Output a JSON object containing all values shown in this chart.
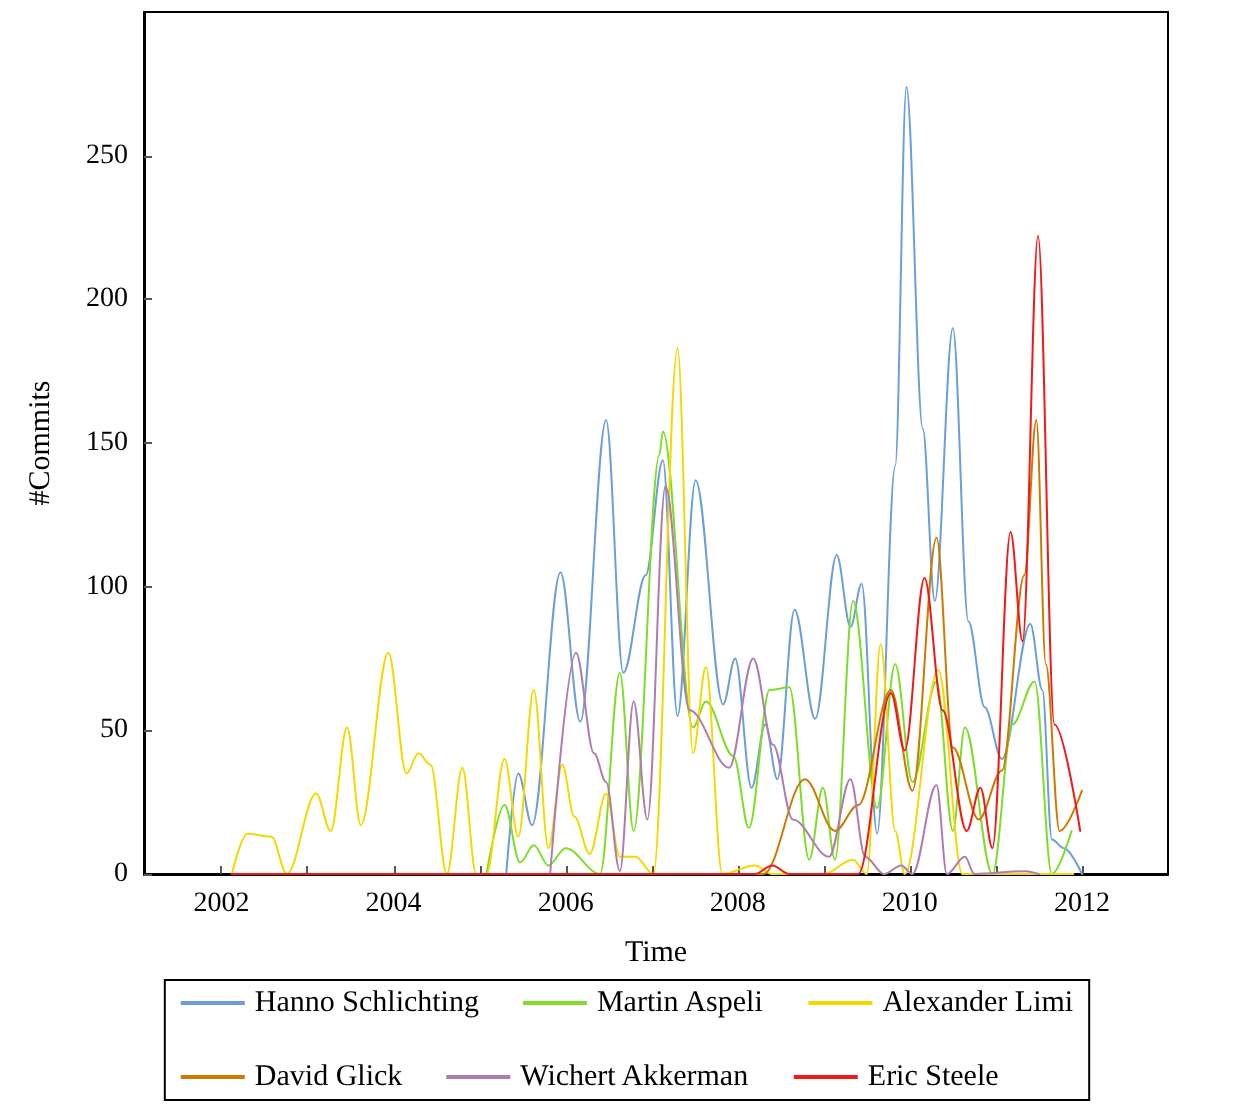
{
  "chart_data": {
    "type": "line",
    "xlabel": "Time",
    "ylabel": "#Commits",
    "xlim": [
      2001.1,
      2013
    ],
    "ylim": [
      0,
      300
    ],
    "xticks": [
      2002,
      {
        "value": 2003,
        "label": null
      },
      2004,
      {
        "value": 2005,
        "label": null
      },
      2006,
      {
        "value": 2007,
        "label": null
      },
      2008,
      {
        "value": 2009,
        "label": null
      },
      2010,
      {
        "value": 2011,
        "label": null
      },
      2012
    ],
    "yticks": [
      0,
      50,
      100,
      150,
      200,
      250
    ],
    "grid": false,
    "legend": "bottom",
    "marker": "none",
    "line_style": "solid",
    "series": [
      {
        "name": "Hanno Schlichting",
        "color": "#6a9fd8",
        "x": [
          2005.31,
          2005.45,
          2005.61,
          2005.94,
          2006.17,
          2006.47,
          2006.67,
          2006.93,
          2007.13,
          2007.3,
          2007.51,
          2007.83,
          2007.97,
          2008.16,
          2008.32,
          2008.46,
          2008.66,
          2008.9,
          2009.15,
          2009.31,
          2009.44,
          2009.62,
          2009.83,
          2009.96,
          2010.15,
          2010.29,
          2010.5,
          2010.68,
          2010.87,
          2011.07,
          2011.4,
          2011.54,
          2011.65,
          2011.79,
          2012.0
        ],
        "values": [
          0,
          35,
          17,
          105,
          53,
          158,
          70,
          104,
          144,
          55,
          137,
          59,
          75,
          30,
          52,
          33,
          92,
          54,
          111,
          86,
          101,
          14,
          142,
          274,
          155,
          95,
          190,
          88,
          58,
          40,
          87,
          64,
          12,
          9,
          0
        ]
      },
      {
        "name": "Martin Aspeli",
        "color": "#7fdd2a",
        "x": [
          2005.08,
          2005.29,
          2005.47,
          2005.63,
          2005.8,
          2006.0,
          2006.4,
          2006.63,
          2006.79,
          2007.09,
          2007.13,
          2007.48,
          2007.63,
          2007.95,
          2008.13,
          2008.37,
          2008.6,
          2008.83,
          2008.99,
          2009.13,
          2009.34,
          2009.62,
          2009.83,
          2010.03,
          2010.31,
          2010.5,
          2010.64,
          2010.96,
          2011.19,
          2011.45,
          2011.65,
          2011.88
        ],
        "values": [
          0,
          24,
          4,
          10,
          3,
          9,
          0,
          70,
          15,
          146,
          154,
          51,
          60,
          41,
          16,
          64,
          65,
          5,
          30,
          5,
          95,
          23,
          73,
          32,
          67,
          15,
          51,
          0,
          52,
          67,
          0,
          15
        ]
      },
      {
        "name": "Alexander Limi",
        "color": "#f5d800",
        "x": [
          2002.12,
          2002.3,
          2002.58,
          2002.76,
          2003.1,
          2003.27,
          2003.46,
          2003.62,
          2003.94,
          2004.15,
          2004.29,
          2004.43,
          2004.62,
          2004.8,
          2004.96,
          2005.08,
          2005.29,
          2005.45,
          2005.63,
          2005.8,
          2005.96,
          2006.1,
          2006.28,
          2006.47,
          2006.63,
          2006.81,
          2007.02,
          2007.3,
          2007.48,
          2007.63,
          2007.82,
          2008.2,
          2008.4,
          2009.0,
          2009.34,
          2009.5,
          2009.66,
          2009.83,
          2009.94,
          2010.33,
          2010.61,
          2011.9
        ],
        "values": [
          0,
          14,
          13,
          0,
          28,
          15,
          51,
          17,
          77,
          35,
          42,
          38,
          0,
          37,
          0,
          0,
          40,
          13,
          64,
          9,
          38,
          20,
          7,
          28,
          6,
          6,
          0,
          183,
          42,
          72,
          0,
          3,
          0,
          0,
          5,
          0,
          80,
          15,
          0,
          71,
          0,
          0
        ]
      },
      {
        "name": "David Glick",
        "color": "#cc7a00",
        "x": [
          2002.12,
          2008.3,
          2008.78,
          2009.13,
          2009.4,
          2009.78,
          2010.03,
          2010.31,
          2010.5,
          2010.8,
          2011.07,
          2011.33,
          2011.47,
          2011.58,
          2011.74,
          2012.0
        ],
        "values": [
          0,
          0,
          33,
          15,
          24,
          64,
          29,
          117,
          44,
          19,
          36,
          104,
          158,
          73,
          15,
          29
        ]
      },
      {
        "name": "Wichert Akkerman",
        "color": "#b07cb0",
        "x": [
          2005.82,
          2006.12,
          2006.33,
          2006.47,
          2006.63,
          2006.79,
          2006.95,
          2007.16,
          2007.44,
          2007.9,
          2008.18,
          2008.41,
          2008.64,
          2009.06,
          2009.31,
          2009.48,
          2009.7,
          2009.9,
          2010.03,
          2010.31,
          2010.43,
          2010.64,
          2010.75,
          2011.34,
          2011.5
        ],
        "values": [
          0,
          77,
          42,
          32,
          1,
          60,
          19,
          135,
          57,
          37,
          75,
          45,
          19,
          6,
          33,
          6,
          0,
          3,
          0,
          31,
          0,
          6,
          0,
          1,
          0
        ]
      },
      {
        "name": "Eric Steele",
        "color": "#f01818",
        "x": [
          2002.12,
          2008.2,
          2008.4,
          2008.6,
          2009.4,
          2009.78,
          2009.94,
          2010.17,
          2010.38,
          2010.66,
          2010.82,
          2010.96,
          2011.17,
          2011.31,
          2011.49,
          2011.68,
          2011.98
        ],
        "values": [
          0,
          0,
          3,
          0,
          0,
          63,
          43,
          103,
          57,
          15,
          30,
          9,
          119,
          81,
          222,
          52,
          15
        ]
      }
    ]
  }
}
